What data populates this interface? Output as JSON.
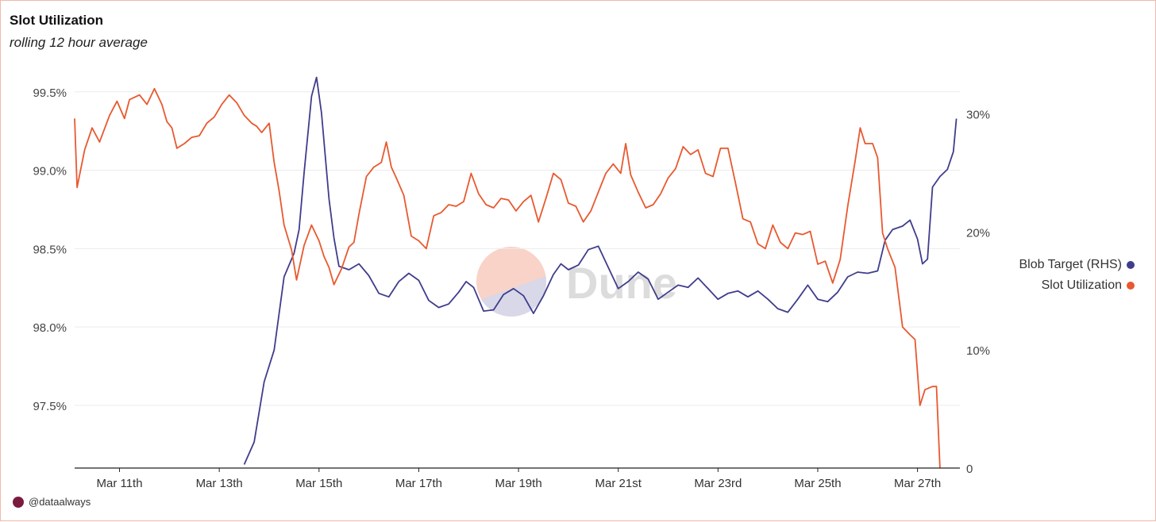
{
  "header": {
    "title": "Slot Utilization",
    "subtitle": "rolling 12 hour average"
  },
  "footer": {
    "credit": "@dataalways"
  },
  "watermark": "Dune",
  "colors": {
    "slot": "#e8592f",
    "blob": "#3f3d8c",
    "grid": "#ececec",
    "axis": "#222222"
  },
  "chart_data": {
    "type": "line",
    "title": "Slot Utilization",
    "subtitle": "rolling 12 hour average",
    "x_ticks": [
      "Mar 11th",
      "Mar 13th",
      "Mar 15th",
      "Mar 17th",
      "Mar 19th",
      "Mar 21st",
      "Mar 23rd",
      "Mar 25th",
      "Mar 27th"
    ],
    "x_range": [
      10.1,
      27.85
    ],
    "y_left": {
      "ticks": [
        "99.5%",
        "99.0%",
        "98.5%",
        "98.0%",
        "97.5%"
      ],
      "tick_values": [
        99.5,
        99.0,
        98.5,
        98.0,
        97.5
      ],
      "range": [
        97.1,
        99.6
      ]
    },
    "y_right": {
      "ticks": [
        "30%",
        "20%",
        "10%",
        "0"
      ],
      "tick_values": [
        30,
        20,
        10,
        0
      ],
      "range": [
        0,
        33.2
      ]
    },
    "grid": true,
    "legend_position": "right",
    "series": [
      {
        "name": "Blob Target (RHS)",
        "axis": "right",
        "color": "#3f3d8c",
        "points": [
          [
            13.5,
            0.3
          ],
          [
            13.7,
            2.2
          ],
          [
            13.9,
            7.3
          ],
          [
            14.1,
            10
          ],
          [
            14.3,
            16.2
          ],
          [
            14.5,
            18.2
          ],
          [
            14.6,
            20.2
          ],
          [
            14.7,
            25
          ],
          [
            14.85,
            31.5
          ],
          [
            14.95,
            33.1
          ],
          [
            15.05,
            30.1
          ],
          [
            15.2,
            22.8
          ],
          [
            15.3,
            19.5
          ],
          [
            15.4,
            17.1
          ],
          [
            15.6,
            16.8
          ],
          [
            15.8,
            17.3
          ],
          [
            16,
            16.3
          ],
          [
            16.2,
            14.8
          ],
          [
            16.4,
            14.5
          ],
          [
            16.6,
            15.8
          ],
          [
            16.8,
            16.5
          ],
          [
            17,
            15.9
          ],
          [
            17.2,
            14.2
          ],
          [
            17.4,
            13.6
          ],
          [
            17.6,
            13.9
          ],
          [
            17.8,
            14.9
          ],
          [
            17.95,
            15.8
          ],
          [
            18.1,
            15.3
          ],
          [
            18.3,
            13.3
          ],
          [
            18.5,
            13.4
          ],
          [
            18.7,
            14.7
          ],
          [
            18.9,
            15.2
          ],
          [
            19.1,
            14.6
          ],
          [
            19.3,
            13.1
          ],
          [
            19.5,
            14.6
          ],
          [
            19.7,
            16.4
          ],
          [
            19.85,
            17.3
          ],
          [
            20,
            16.8
          ],
          [
            20.2,
            17.2
          ],
          [
            20.4,
            18.5
          ],
          [
            20.6,
            18.8
          ],
          [
            20.8,
            17
          ],
          [
            21,
            15.2
          ],
          [
            21.2,
            15.8
          ],
          [
            21.4,
            16.6
          ],
          [
            21.6,
            16
          ],
          [
            21.8,
            14.3
          ],
          [
            22,
            14.9
          ],
          [
            22.2,
            15.5
          ],
          [
            22.4,
            15.3
          ],
          [
            22.6,
            16.1
          ],
          [
            22.8,
            15.2
          ],
          [
            23,
            14.3
          ],
          [
            23.2,
            14.8
          ],
          [
            23.4,
            15
          ],
          [
            23.6,
            14.5
          ],
          [
            23.8,
            15
          ],
          [
            24,
            14.3
          ],
          [
            24.2,
            13.5
          ],
          [
            24.4,
            13.2
          ],
          [
            24.6,
            14.3
          ],
          [
            24.8,
            15.5
          ],
          [
            25,
            14.3
          ],
          [
            25.2,
            14.1
          ],
          [
            25.4,
            14.9
          ],
          [
            25.6,
            16.2
          ],
          [
            25.8,
            16.6
          ],
          [
            26,
            16.5
          ],
          [
            26.2,
            16.7
          ],
          [
            26.35,
            19.3
          ],
          [
            26.5,
            20.2
          ],
          [
            26.7,
            20.5
          ],
          [
            26.85,
            21
          ],
          [
            27,
            19.4
          ],
          [
            27.1,
            17.3
          ],
          [
            27.2,
            17.7
          ],
          [
            27.3,
            23.8
          ],
          [
            27.45,
            24.7
          ],
          [
            27.6,
            25.3
          ],
          [
            27.72,
            26.8
          ],
          [
            27.78,
            29.6
          ]
        ]
      },
      {
        "name": "Slot Utilization",
        "axis": "left",
        "color": "#e8592f",
        "points": [
          [
            10.1,
            99.33
          ],
          [
            10.15,
            98.89
          ],
          [
            10.3,
            99.13
          ],
          [
            10.45,
            99.27
          ],
          [
            10.6,
            99.18
          ],
          [
            10.8,
            99.35
          ],
          [
            10.95,
            99.44
          ],
          [
            11.1,
            99.33
          ],
          [
            11.2,
            99.45
          ],
          [
            11.4,
            99.48
          ],
          [
            11.55,
            99.42
          ],
          [
            11.7,
            99.52
          ],
          [
            11.85,
            99.42
          ],
          [
            11.95,
            99.31
          ],
          [
            12.05,
            99.27
          ],
          [
            12.15,
            99.14
          ],
          [
            12.3,
            99.17
          ],
          [
            12.45,
            99.21
          ],
          [
            12.6,
            99.22
          ],
          [
            12.75,
            99.3
          ],
          [
            12.9,
            99.34
          ],
          [
            13.05,
            99.42
          ],
          [
            13.2,
            99.48
          ],
          [
            13.35,
            99.43
          ],
          [
            13.5,
            99.35
          ],
          [
            13.65,
            99.3
          ],
          [
            13.75,
            99.28
          ],
          [
            13.85,
            99.24
          ],
          [
            14.0,
            99.3
          ],
          [
            14.1,
            99.05
          ],
          [
            14.2,
            98.87
          ],
          [
            14.3,
            98.65
          ],
          [
            14.45,
            98.49
          ],
          [
            14.55,
            98.3
          ],
          [
            14.7,
            98.52
          ],
          [
            14.85,
            98.65
          ],
          [
            15.0,
            98.55
          ],
          [
            15.1,
            98.45
          ],
          [
            15.2,
            98.38
          ],
          [
            15.3,
            98.27
          ],
          [
            15.45,
            98.37
          ],
          [
            15.6,
            98.51
          ],
          [
            15.7,
            98.54
          ],
          [
            15.8,
            98.72
          ],
          [
            15.95,
            98.96
          ],
          [
            16.1,
            99.02
          ],
          [
            16.25,
            99.05
          ],
          [
            16.35,
            99.18
          ],
          [
            16.45,
            99.02
          ],
          [
            16.55,
            98.95
          ],
          [
            16.7,
            98.84
          ],
          [
            16.85,
            98.58
          ],
          [
            17.0,
            98.55
          ],
          [
            17.15,
            98.5
          ],
          [
            17.3,
            98.71
          ],
          [
            17.45,
            98.73
          ],
          [
            17.6,
            98.78
          ],
          [
            17.75,
            98.77
          ],
          [
            17.9,
            98.8
          ],
          [
            18.05,
            98.98
          ],
          [
            18.2,
            98.85
          ],
          [
            18.35,
            98.78
          ],
          [
            18.5,
            98.76
          ],
          [
            18.65,
            98.82
          ],
          [
            18.8,
            98.81
          ],
          [
            18.95,
            98.74
          ],
          [
            19.1,
            98.8
          ],
          [
            19.25,
            98.84
          ],
          [
            19.4,
            98.67
          ],
          [
            19.55,
            98.82
          ],
          [
            19.7,
            98.98
          ],
          [
            19.85,
            98.94
          ],
          [
            20.0,
            98.79
          ],
          [
            20.15,
            98.77
          ],
          [
            20.3,
            98.67
          ],
          [
            20.45,
            98.74
          ],
          [
            20.6,
            98.86
          ],
          [
            20.75,
            98.98
          ],
          [
            20.9,
            99.04
          ],
          [
            21.05,
            98.98
          ],
          [
            21.15,
            99.17
          ],
          [
            21.25,
            98.97
          ],
          [
            21.4,
            98.86
          ],
          [
            21.55,
            98.76
          ],
          [
            21.7,
            98.78
          ],
          [
            21.85,
            98.85
          ],
          [
            22.0,
            98.95
          ],
          [
            22.15,
            99.01
          ],
          [
            22.3,
            99.15
          ],
          [
            22.45,
            99.1
          ],
          [
            22.6,
            99.13
          ],
          [
            22.75,
            98.98
          ],
          [
            22.9,
            98.96
          ],
          [
            23.05,
            99.14
          ],
          [
            23.2,
            99.14
          ],
          [
            23.35,
            98.92
          ],
          [
            23.5,
            98.69
          ],
          [
            23.65,
            98.67
          ],
          [
            23.8,
            98.53
          ],
          [
            23.95,
            98.5
          ],
          [
            24.1,
            98.65
          ],
          [
            24.25,
            98.54
          ],
          [
            24.4,
            98.5
          ],
          [
            24.55,
            98.6
          ],
          [
            24.7,
            98.59
          ],
          [
            24.85,
            98.61
          ],
          [
            25.0,
            98.4
          ],
          [
            25.15,
            98.42
          ],
          [
            25.3,
            98.28
          ],
          [
            25.45,
            98.43
          ],
          [
            25.6,
            98.77
          ],
          [
            25.75,
            99.06
          ],
          [
            25.85,
            99.27
          ],
          [
            25.95,
            99.17
          ],
          [
            26.1,
            99.17
          ],
          [
            26.2,
            99.08
          ],
          [
            26.3,
            98.6
          ],
          [
            26.4,
            98.5
          ],
          [
            26.55,
            98.38
          ],
          [
            26.7,
            98.0
          ],
          [
            26.85,
            97.95
          ],
          [
            26.95,
            97.92
          ],
          [
            27.05,
            97.5
          ],
          [
            27.15,
            97.6
          ],
          [
            27.3,
            97.62
          ],
          [
            27.38,
            97.62
          ],
          [
            27.45,
            97.1
          ]
        ]
      }
    ]
  }
}
